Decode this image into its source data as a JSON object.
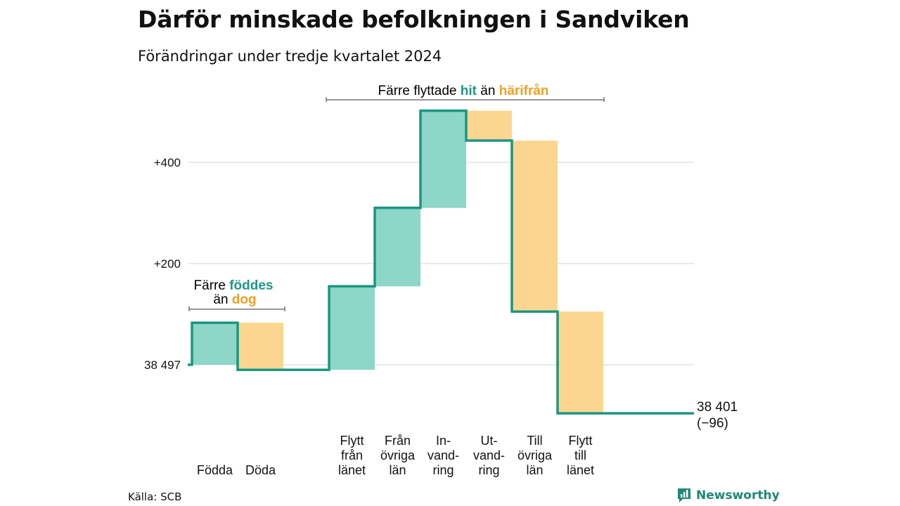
{
  "title": "Därför minskade befolkningen i Sandviken",
  "subtitle": "Förändringar under tredje kvartalet 2024",
  "source": "Källa: SCB",
  "brand": {
    "name": "Newsworthy",
    "icon": "bar-chart-speech-bubble-icon",
    "color": "#1d8a73"
  },
  "annotations": {
    "births": {
      "prefix": "Färre ",
      "hit": "föddes",
      "line2_prefix": "än ",
      "away": "dog"
    },
    "migration": {
      "prefix": "Färre flyttade ",
      "hit": "hit",
      "middle": " än ",
      "away": "härifrån"
    }
  },
  "chart_data": {
    "type": "waterfall",
    "start_value": 38497,
    "start_label": "38 497",
    "end_label": "38 401",
    "end_change_label": "(−96)",
    "y_ticks": [
      {
        "value": 38697,
        "label": "+200"
      },
      {
        "value": 38897,
        "label": "+400"
      }
    ],
    "grid": true,
    "colors": {
      "increase": "#8dd6c8",
      "decrease": "#fcd690",
      "line": "#1a9682",
      "hit_text": "#1d9984",
      "away_text": "#f0a024"
    },
    "steps": [
      {
        "label": [
          "Födda"
        ],
        "kind": "increase",
        "from": 38497,
        "to": 38580
      },
      {
        "label": [
          "Döda"
        ],
        "kind": "decrease",
        "from": 38580,
        "to": 38487
      },
      {
        "label": [],
        "kind": "gap",
        "from": 38487,
        "to": 38487
      },
      {
        "label": [
          "Flytt",
          "från",
          "länet"
        ],
        "kind": "increase",
        "from": 38487,
        "to": 38652
      },
      {
        "label": [
          "Från",
          "övriga",
          "län"
        ],
        "kind": "increase",
        "from": 38652,
        "to": 38807
      },
      {
        "label": [
          "In-",
          "vand-",
          "ring"
        ],
        "kind": "increase",
        "from": 38807,
        "to": 38999
      },
      {
        "label": [
          "Ut-",
          "vand-",
          "ring"
        ],
        "kind": "decrease",
        "from": 38999,
        "to": 38940
      },
      {
        "label": [
          "Till",
          "övriga",
          "län"
        ],
        "kind": "decrease",
        "from": 38940,
        "to": 38602
      },
      {
        "label": [
          "Flytt",
          "till",
          "länet"
        ],
        "kind": "decrease",
        "from": 38602,
        "to": 38401
      }
    ]
  }
}
